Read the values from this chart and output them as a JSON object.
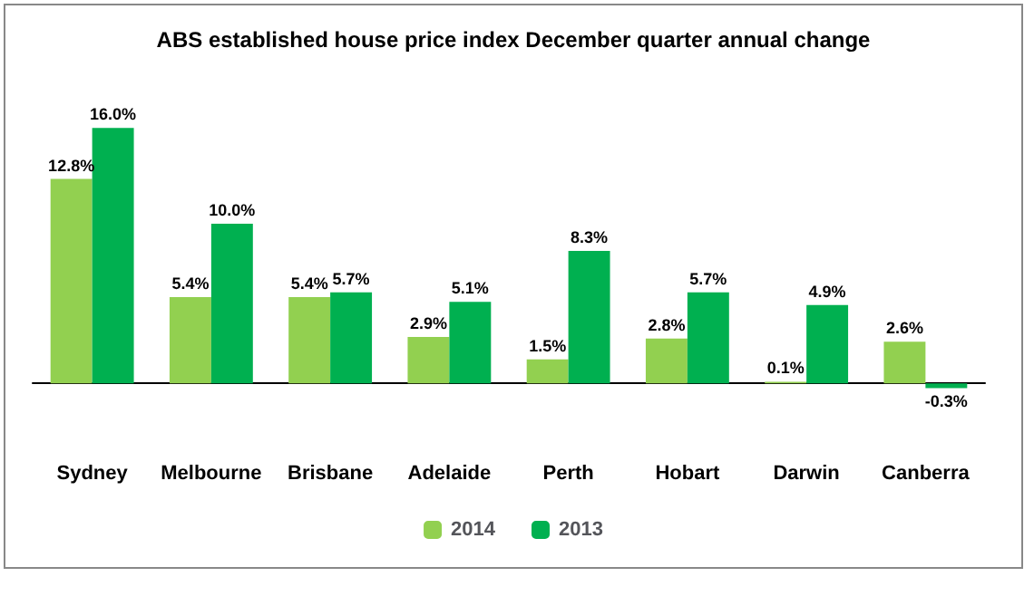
{
  "chart_data": {
    "type": "bar",
    "title": "ABS established house price index December quarter annual change",
    "categories": [
      "Sydney",
      "Melbourne",
      "Brisbane",
      "Adelaide",
      "Perth",
      "Hobart",
      "Darwin",
      "Canberra"
    ],
    "series": [
      {
        "name": "2014",
        "color": "#92d050",
        "values": [
          12.8,
          5.4,
          5.4,
          2.9,
          1.5,
          2.8,
          0.1,
          2.6
        ],
        "value_labels": [
          "12.8%",
          "5.4%",
          "5.4%",
          "2.9%",
          "1.5%",
          "2.8%",
          "0.1%",
          "2.6%"
        ]
      },
      {
        "name": "2013",
        "color": "#00b050",
        "values": [
          16.0,
          10.0,
          5.7,
          5.1,
          8.3,
          5.7,
          4.9,
          -0.3
        ],
        "value_labels": [
          "16.0%",
          "10.0%",
          "5.7%",
          "5.1%",
          "8.3%",
          "5.7%",
          "4.9%",
          "-0.3%"
        ]
      }
    ],
    "legend": "bottom"
  }
}
